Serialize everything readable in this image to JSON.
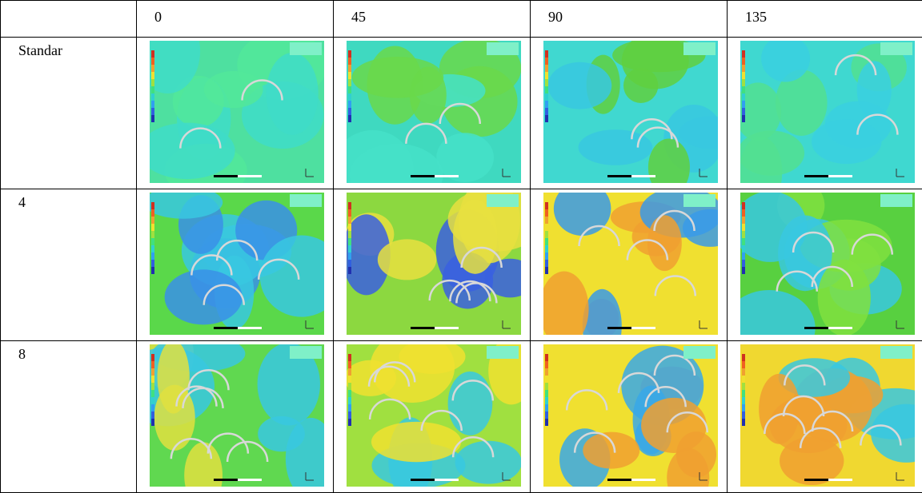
{
  "table": {
    "columns": [
      "0",
      "45",
      "90",
      "135"
    ],
    "rows": [
      "Standar",
      "4",
      "8"
    ]
  }
}
